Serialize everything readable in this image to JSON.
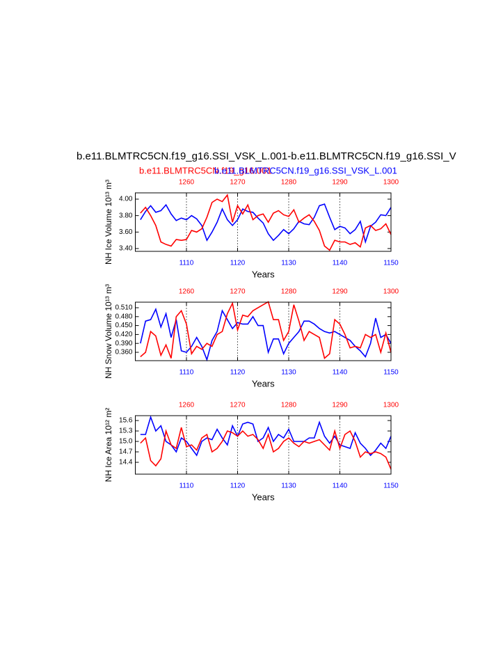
{
  "chart_data": [
    {
      "type": "line",
      "title": "b.e11.BLMTRC5CN.f19_g16.SSI_VSK_L.001-b.e11.BLMTRC5CN.f19_g16.SSI_V",
      "subtitle_left": "b.e11.BLMTRC5CN.f19_g16.001",
      "subtitle_right": "b.e11.BLMTRC5CN.f19_g16.SSI_VSK_L.001",
      "ylabel": "NH Ice Volume 10¹³ m³",
      "xlabel": "Years",
      "x": [
        1101,
        1102,
        1103,
        1104,
        1105,
        1106,
        1107,
        1108,
        1109,
        1110,
        1111,
        1112,
        1113,
        1114,
        1115,
        1116,
        1117,
        1118,
        1119,
        1120,
        1121,
        1122,
        1123,
        1124,
        1125,
        1126,
        1127,
        1128,
        1129,
        1130,
        1131,
        1132,
        1133,
        1134,
        1135,
        1136,
        1137,
        1138,
        1139,
        1140,
        1141,
        1142,
        1143,
        1144,
        1145,
        1146,
        1147,
        1148,
        1149,
        1150
      ],
      "x2": [
        1251,
        1252,
        1253,
        1254,
        1255,
        1256,
        1257,
        1258,
        1259,
        1260,
        1261,
        1262,
        1263,
        1264,
        1265,
        1266,
        1267,
        1268,
        1269,
        1270,
        1271,
        1272,
        1273,
        1274,
        1275,
        1276,
        1277,
        1278,
        1279,
        1280,
        1281,
        1282,
        1283,
        1284,
        1285,
        1286,
        1287,
        1288,
        1289,
        1290,
        1291,
        1292,
        1293,
        1294,
        1295,
        1296,
        1297,
        1298,
        1299,
        1300
      ],
      "xlim": [
        1100,
        1150
      ],
      "xticks": [
        1110,
        1120,
        1130,
        1140,
        1150
      ],
      "x2lim": [
        1250,
        1300
      ],
      "x2ticks": [
        1260,
        1270,
        1280,
        1290,
        1300
      ],
      "ylim": [
        3.366,
        4.076
      ],
      "yticks": [
        {
          "value": 3.4,
          "label": "3.40"
        },
        {
          "value": 3.6,
          "label": "3.60"
        },
        {
          "value": 3.8,
          "label": "3.80"
        },
        {
          "value": 4.0,
          "label": "4.00"
        }
      ],
      "grid": "dashed",
      "series": [
        {
          "name": "b.e11.BLMTRC5CN.f19_g16.SSI_VSK_L.001",
          "color": "#0000ff",
          "axis": "x",
          "values": [
            3.75,
            3.85,
            3.92,
            3.84,
            3.86,
            3.93,
            3.82,
            3.74,
            3.77,
            3.75,
            3.8,
            3.76,
            3.68,
            3.5,
            3.6,
            3.72,
            3.88,
            3.75,
            3.68,
            3.75,
            3.88,
            3.85,
            3.84,
            3.77,
            3.71,
            3.58,
            3.5,
            3.56,
            3.63,
            3.58,
            3.64,
            3.73,
            3.7,
            3.69,
            3.78,
            3.92,
            3.94,
            3.78,
            3.63,
            3.67,
            3.65,
            3.58,
            3.63,
            3.73,
            3.48,
            3.67,
            3.72,
            3.81,
            3.8,
            3.9
          ]
        },
        {
          "name": "b.e11.BLMTRC5CN.f19_g16.001",
          "color": "#ff0000",
          "axis": "x2",
          "values": [
            3.83,
            3.9,
            3.8,
            3.68,
            3.48,
            3.45,
            3.43,
            3.51,
            3.5,
            3.51,
            3.62,
            3.6,
            3.64,
            3.78,
            3.96,
            4.0,
            3.97,
            4.05,
            3.72,
            3.92,
            3.82,
            3.93,
            3.75,
            3.8,
            3.82,
            3.72,
            3.83,
            3.86,
            3.81,
            3.79,
            3.87,
            3.72,
            3.77,
            3.81,
            3.73,
            3.62,
            3.43,
            3.38,
            3.5,
            3.48,
            3.48,
            3.45,
            3.47,
            3.42,
            3.65,
            3.68,
            3.62,
            3.64,
            3.7,
            3.57
          ]
        }
      ]
    },
    {
      "type": "line",
      "ylabel": "NH Snow Volume 10¹³ m³",
      "xlabel": "Years",
      "x": [
        1101,
        1102,
        1103,
        1104,
        1105,
        1106,
        1107,
        1108,
        1109,
        1110,
        1111,
        1112,
        1113,
        1114,
        1115,
        1116,
        1117,
        1118,
        1119,
        1120,
        1121,
        1122,
        1123,
        1124,
        1125,
        1126,
        1127,
        1128,
        1129,
        1130,
        1131,
        1132,
        1133,
        1134,
        1135,
        1136,
        1137,
        1138,
        1139,
        1140,
        1141,
        1142,
        1143,
        1144,
        1145,
        1146,
        1147,
        1148,
        1149,
        1150
      ],
      "x2": [
        1251,
        1252,
        1253,
        1254,
        1255,
        1256,
        1257,
        1258,
        1259,
        1260,
        1261,
        1262,
        1263,
        1264,
        1265,
        1266,
        1267,
        1268,
        1269,
        1270,
        1271,
        1272,
        1273,
        1274,
        1275,
        1276,
        1277,
        1278,
        1279,
        1280,
        1281,
        1282,
        1283,
        1284,
        1285,
        1286,
        1287,
        1288,
        1289,
        1290,
        1291,
        1292,
        1293,
        1294,
        1295,
        1296,
        1297,
        1298,
        1299,
        1300
      ],
      "xlim": [
        1100,
        1150
      ],
      "xticks": [
        1110,
        1120,
        1130,
        1140,
        1150
      ],
      "x2lim": [
        1250,
        1300
      ],
      "x2ticks": [
        1260,
        1270,
        1280,
        1290,
        1300
      ],
      "ylim": [
        0.3319,
        0.5287
      ],
      "yticks": [
        {
          "value": 0.36,
          "label": "0.360"
        },
        {
          "value": 0.39,
          "label": "0.390"
        },
        {
          "value": 0.42,
          "label": "0.420"
        },
        {
          "value": 0.45,
          "label": "0.450"
        },
        {
          "value": 0.48,
          "label": "0.480"
        },
        {
          "value": 0.51,
          "label": "0.510"
        }
      ],
      "grid": "dashed",
      "series": [
        {
          "name": "b.e11.BLMTRC5CN.f19_g16.SSI_VSK_L.001",
          "color": "#0000ff",
          "axis": "x",
          "values": [
            0.39,
            0.465,
            0.47,
            0.505,
            0.445,
            0.49,
            0.41,
            0.47,
            0.365,
            0.36,
            0.38,
            0.41,
            0.38,
            0.335,
            0.4,
            0.43,
            0.5,
            0.47,
            0.44,
            0.46,
            0.455,
            0.455,
            0.48,
            0.45,
            0.45,
            0.36,
            0.405,
            0.405,
            0.355,
            0.39,
            0.41,
            0.43,
            0.465,
            0.465,
            0.455,
            0.44,
            0.43,
            0.425,
            0.43,
            0.42,
            0.41,
            0.4,
            0.38,
            0.365,
            0.345,
            0.39,
            0.475,
            0.41,
            0.42,
            0.39
          ]
        },
        {
          "name": "b.e11.BLMTRC5CN.f19_g16.001",
          "color": "#ff0000",
          "axis": "x2",
          "values": [
            0.345,
            0.36,
            0.43,
            0.415,
            0.35,
            0.385,
            0.34,
            0.48,
            0.5,
            0.455,
            0.355,
            0.38,
            0.37,
            0.39,
            0.38,
            0.42,
            0.43,
            0.49,
            0.525,
            0.435,
            0.485,
            0.48,
            0.5,
            0.51,
            0.52,
            0.53,
            0.47,
            0.47,
            0.4,
            0.43,
            0.52,
            0.465,
            0.4,
            0.43,
            0.42,
            0.41,
            0.34,
            0.355,
            0.47,
            0.455,
            0.42,
            0.375,
            0.38,
            0.375,
            0.42,
            0.41,
            0.42,
            0.36,
            0.425,
            0.36
          ]
        }
      ]
    },
    {
      "type": "line",
      "ylabel": "NH Ice Area 10¹² m²",
      "xlabel": "Years",
      "x": [
        1101,
        1102,
        1103,
        1104,
        1105,
        1106,
        1107,
        1108,
        1109,
        1110,
        1111,
        1112,
        1113,
        1114,
        1115,
        1116,
        1117,
        1118,
        1119,
        1120,
        1121,
        1122,
        1123,
        1124,
        1125,
        1126,
        1127,
        1128,
        1129,
        1130,
        1131,
        1132,
        1133,
        1134,
        1135,
        1136,
        1137,
        1138,
        1139,
        1140,
        1141,
        1142,
        1143,
        1144,
        1145,
        1146,
        1147,
        1148,
        1149,
        1150
      ],
      "x2": [
        1251,
        1252,
        1253,
        1254,
        1255,
        1256,
        1257,
        1258,
        1259,
        1260,
        1261,
        1262,
        1263,
        1264,
        1265,
        1266,
        1267,
        1268,
        1269,
        1270,
        1271,
        1272,
        1273,
        1274,
        1275,
        1276,
        1277,
        1278,
        1279,
        1280,
        1281,
        1282,
        1283,
        1284,
        1285,
        1286,
        1287,
        1288,
        1289,
        1290,
        1291,
        1292,
        1293,
        1294,
        1295,
        1296,
        1297,
        1298,
        1299,
        1300
      ],
      "xlim": [
        1100,
        1150
      ],
      "xticks": [
        1110,
        1120,
        1130,
        1140,
        1150
      ],
      "x2lim": [
        1250,
        1300
      ],
      "x2ticks": [
        1260,
        1270,
        1280,
        1290,
        1300
      ],
      "ylim": [
        14.06,
        15.74
      ],
      "yticks": [
        14.4,
        14.7,
        {
          "value": 15,
          "label": "15.0"
        },
        15.3,
        15.6
      ],
      "grid": "dashed",
      "series": [
        {
          "name": "b.e11.BLMTRC5CN.f19_g16.SSI_VSK_L.001",
          "color": "#0000ff",
          "axis": "x",
          "values": [
            15.2,
            15.2,
            15.7,
            15.3,
            15.45,
            15.0,
            14.9,
            14.7,
            15.1,
            15.0,
            14.8,
            14.6,
            15.0,
            15.1,
            15.05,
            15.35,
            15.1,
            14.9,
            15.45,
            15.15,
            15.5,
            15.55,
            15.5,
            15.0,
            15.1,
            15.4,
            15.0,
            15.2,
            15.1,
            15.35,
            15.0,
            15.0,
            15.0,
            15.1,
            15.1,
            15.55,
            15.15,
            14.95,
            15.15,
            14.9,
            14.85,
            14.8,
            15.25,
            14.95,
            14.8,
            14.6,
            14.75,
            14.95,
            14.8,
            15.15
          ]
        },
        {
          "name": "b.e11.BLMTRC5CN.f19_g16.001",
          "color": "#ff0000",
          "axis": "x2",
          "values": [
            14.95,
            15.1,
            14.45,
            14.3,
            14.5,
            15.3,
            14.9,
            14.8,
            15.4,
            14.85,
            14.9,
            14.75,
            15.1,
            15.2,
            14.7,
            14.8,
            15.0,
            15.3,
            15.25,
            15.15,
            15.3,
            15.15,
            15.2,
            15.05,
            14.8,
            15.2,
            14.7,
            14.8,
            15.0,
            15.1,
            14.95,
            14.85,
            15.0,
            14.95,
            15.0,
            15.05,
            14.9,
            14.75,
            15.3,
            14.8,
            15.2,
            15.3,
            15.0,
            14.55,
            14.7,
            14.65,
            14.7,
            14.65,
            14.55,
            14.2
          ]
        }
      ]
    }
  ]
}
